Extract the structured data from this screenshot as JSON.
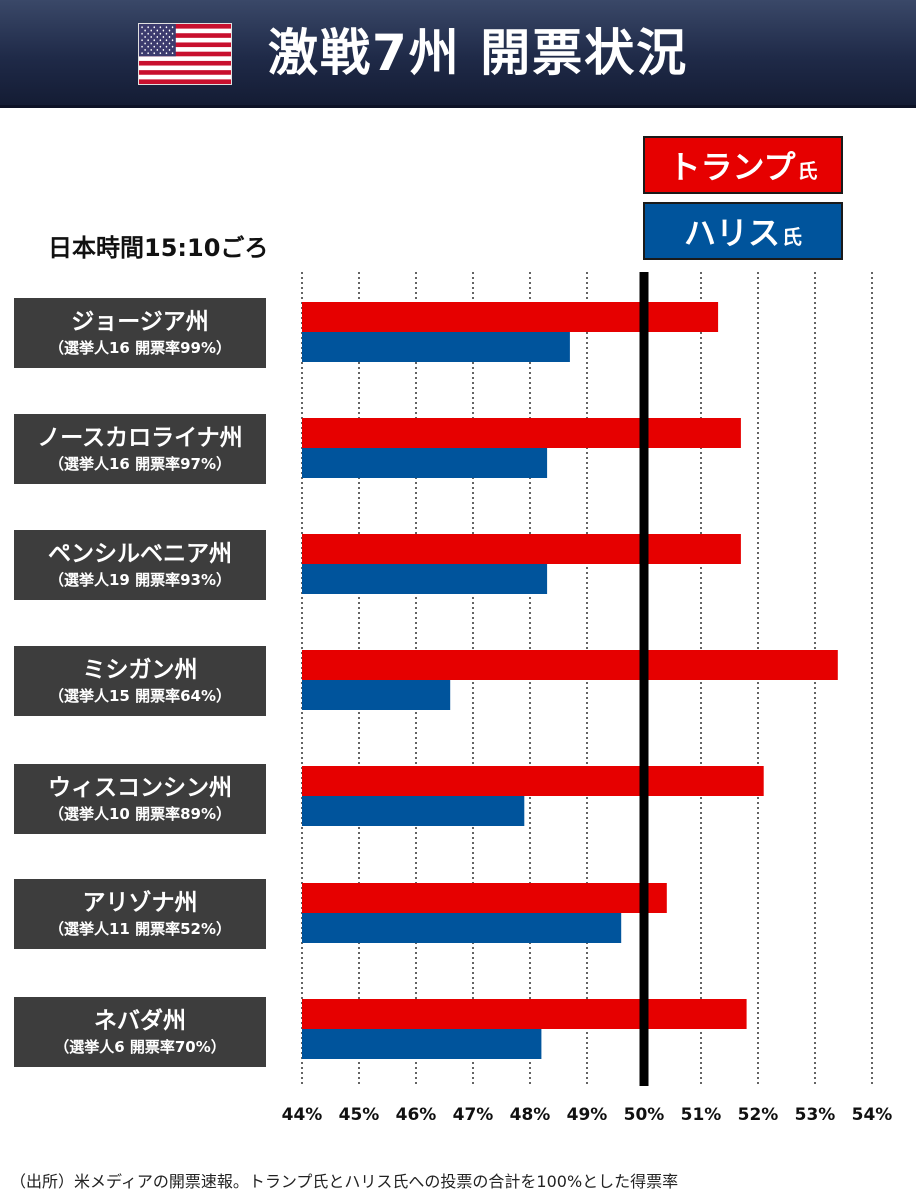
{
  "header": {
    "title": "激戦7州 開票状況",
    "flag_icon": "us-flag-icon"
  },
  "legend": {
    "suffix": "氏",
    "trump": {
      "name": "トランプ",
      "color": "#e60000"
    },
    "harris": {
      "name": "ハリス",
      "color": "#00549c"
    }
  },
  "timestamp": "日本時間15:10ごろ",
  "source_note": "（出所）米メディアの開票速報。トランプ氏とハリス氏への投票の合計を100%とした得票率",
  "chart_data": {
    "type": "bar",
    "orientation": "horizontal",
    "categories": [
      "ジョージア州",
      "ノースカロライナ州",
      "ペンシルベニア州",
      "ミシガン州",
      "ウィスコンシン州",
      "アリゾナ州",
      "ネバダ州"
    ],
    "category_sublabels": [
      "（選挙人16 開票率99%）",
      "（選挙人16 開票率97%）",
      "（選挙人19 開票率93%）",
      "（選挙人15 開票率64%）",
      "（選挙人10 開票率89%）",
      "（選挙人11 開票率52%）",
      "（選挙人6 開票率70%）"
    ],
    "series": [
      {
        "name": "トランプ氏",
        "color": "#e60000",
        "values": [
          51.3,
          51.7,
          51.7,
          53.4,
          52.1,
          50.4,
          51.8
        ]
      },
      {
        "name": "ハリス氏",
        "color": "#00549c",
        "values": [
          48.7,
          48.3,
          48.3,
          46.6,
          47.9,
          49.6,
          48.2
        ]
      }
    ],
    "xlim": [
      44,
      54
    ],
    "x_ticks": [
      44,
      45,
      46,
      47,
      48,
      49,
      50,
      51,
      52,
      53,
      54
    ],
    "x_tick_labels": [
      "44%",
      "45%",
      "46%",
      "47%",
      "48%",
      "49%",
      "50%",
      "51%",
      "52%",
      "53%",
      "54%"
    ],
    "reference_line": 50,
    "grid": "vertical-dotted",
    "legend_position": "top-right"
  }
}
